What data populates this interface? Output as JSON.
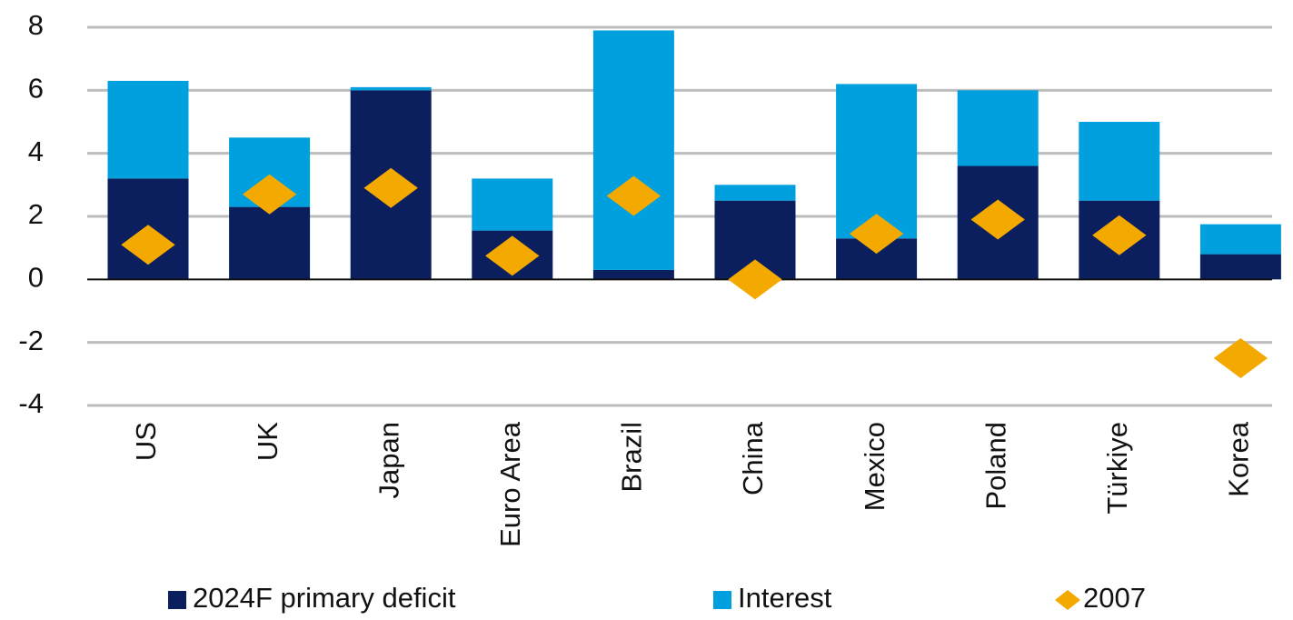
{
  "chart_data": {
    "type": "bar",
    "stacked": true,
    "categories": [
      "US",
      "UK",
      "Japan",
      "Euro Area",
      "Brazil",
      "China",
      "Mexico",
      "Poland",
      "Türkiye",
      "Korea"
    ],
    "series": [
      {
        "name": "2024F primary deficit",
        "color": "#0b1f5e",
        "type": "bar",
        "values": [
          3.2,
          2.3,
          6.0,
          1.55,
          0.3,
          2.5,
          1.3,
          3.6,
          2.5,
          0.8
        ]
      },
      {
        "name": "Interest",
        "color": "#00a0df",
        "type": "bar",
        "values": [
          3.1,
          2.2,
          0.1,
          1.65,
          7.6,
          0.5,
          4.9,
          2.4,
          2.5,
          0.95
        ]
      },
      {
        "name": "2007",
        "color": "#f4a900",
        "type": "marker",
        "values": [
          1.1,
          2.7,
          2.9,
          0.75,
          2.65,
          0.0,
          1.45,
          1.9,
          1.4,
          -2.5
        ]
      }
    ],
    "ylim": [
      -4,
      8
    ],
    "yticks": [
      -4,
      -2,
      0,
      2,
      4,
      6,
      8
    ],
    "grid": true,
    "legend": "bottom"
  }
}
